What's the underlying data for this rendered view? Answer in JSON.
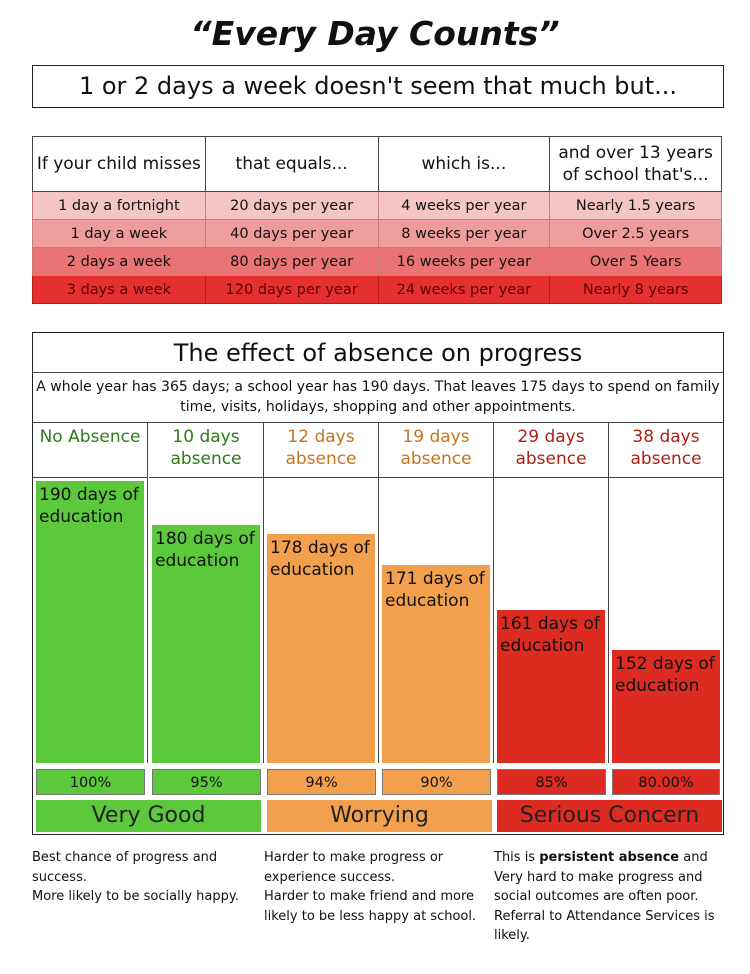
{
  "header": {
    "title": "“Every Day Counts”",
    "subtitle": "1 or 2 days a week doesn't seem that much but..."
  },
  "table": {
    "headers": [
      "If your child misses",
      "that equals...",
      "which is...",
      "and over 13 years of school that's..."
    ],
    "rows": [
      [
        "1 day a fortnight",
        "20 days per year",
        "4 weeks per year",
        "Nearly 1.5 years"
      ],
      [
        "1 day a week",
        "40 days per year",
        "8 weeks per year",
        "Over 2.5 years"
      ],
      [
        "2 days a week",
        "80 days per year",
        "16 weeks per year",
        "Over 5 Years"
      ],
      [
        "3 days a week",
        "120 days per year",
        "24 weeks per year",
        "Nearly 8 years"
      ]
    ]
  },
  "effect": {
    "title": "The effect of absence on progress",
    "description": "A whole year has 365 days; a school year has 190 days.  That leaves 175 days to spend on family time, visits, holidays, shopping and other appointments.",
    "verdicts": [
      "Very Good",
      "Worrying",
      "Serious Concern"
    ]
  },
  "chart_data": {
    "type": "bar",
    "categories": [
      "No Absence",
      "10 days absence",
      "12 days absence",
      "19 days absence",
      "29 days absence",
      "38 days absence"
    ],
    "values": [
      190,
      180,
      178,
      171,
      161,
      152
    ],
    "bar_labels": [
      "190 days of education",
      "180 days of education",
      "178 days of education",
      "171 days of education",
      "161 days of education",
      "152 days of education"
    ],
    "percentages": [
      "100%",
      "95%",
      "94%",
      "90%",
      "85%",
      "80.00%"
    ],
    "ylim": [
      140,
      190
    ],
    "colors": {
      "green": "#5cc83c",
      "orange": "#f2a04e",
      "red": "#dd2b22",
      "green_text": "#2c7a18",
      "orange_text": "#c9721c",
      "red_text": "#b01e16"
    }
  },
  "notes": {
    "good": [
      "Best chance of progress and success.",
      "More likely to be socially happy."
    ],
    "worrying": [
      "Harder to make progress or experience success.",
      "Harder to make friend and more likely to be less happy at school."
    ],
    "serious_prefix": "This is ",
    "serious_bold": "persistent absence",
    "serious_rest": " and Very hard to make progress and social outcomes are often poor. Referral to Attendance Services is likely."
  }
}
